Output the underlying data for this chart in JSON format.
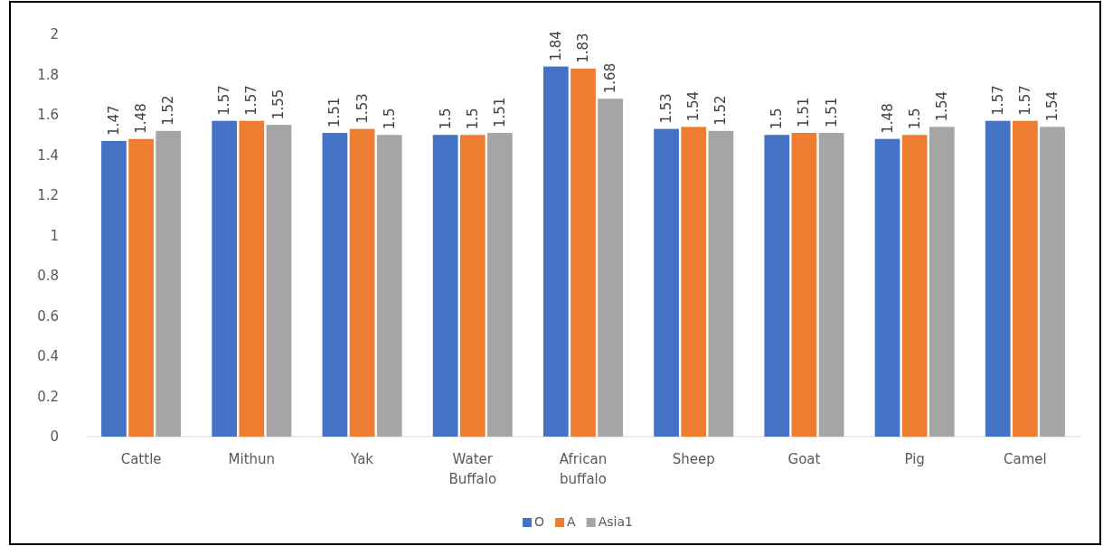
{
  "chart_data": {
    "type": "bar",
    "categories": [
      "Cattle",
      "Mithun",
      "Yak",
      "Water Buffalo",
      "African buffalo",
      "Sheep",
      "Goat",
      "Pig",
      "Camel"
    ],
    "series": [
      {
        "name": "O",
        "color": "#4472c4",
        "values": [
          1.47,
          1.57,
          1.51,
          1.5,
          1.84,
          1.53,
          1.5,
          1.48,
          1.57
        ]
      },
      {
        "name": "A",
        "color": "#ed7d31",
        "values": [
          1.48,
          1.57,
          1.53,
          1.5,
          1.83,
          1.54,
          1.51,
          1.5,
          1.57
        ]
      },
      {
        "name": "Asia1",
        "color": "#a5a5a5",
        "values": [
          1.52,
          1.55,
          1.5,
          1.51,
          1.68,
          1.52,
          1.51,
          1.54,
          1.54
        ]
      }
    ],
    "ylim": [
      0,
      2
    ],
    "yticks": [
      0,
      0.2,
      0.4,
      0.6,
      0.8,
      1,
      1.2,
      1.4,
      1.6,
      1.8,
      2
    ],
    "grid": false,
    "legend": "bottom",
    "data_labels": true
  }
}
